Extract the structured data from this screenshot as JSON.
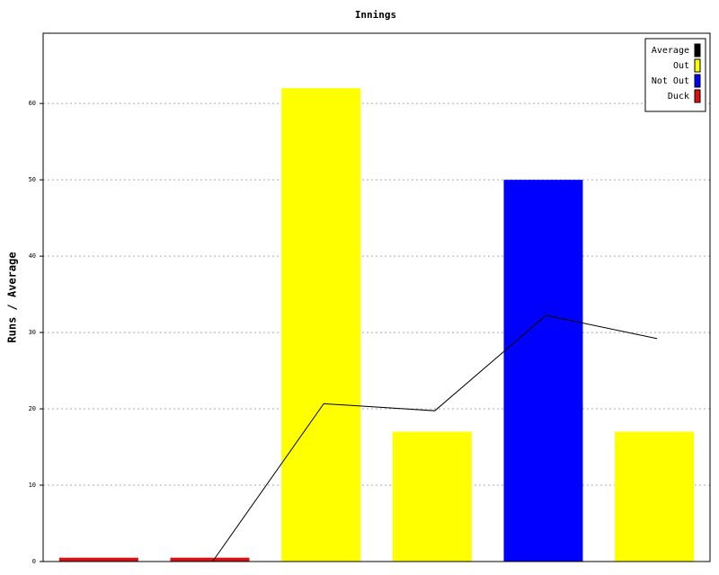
{
  "chart_data": {
    "type": "bar",
    "title": "Innings",
    "y_label": "Runs / Average",
    "ylim": [
      0,
      69.2
    ],
    "yticks": [
      0,
      10,
      20,
      30,
      40,
      50,
      60
    ],
    "grid": true,
    "legend": "top-right",
    "series": [
      {
        "name": "Average",
        "color": "#000000",
        "type": "line",
        "values": [
          null,
          0,
          20.67,
          19.75,
          32.25,
          29.2
        ]
      },
      {
        "name": "Out",
        "color": "#ffff00",
        "type": "bar",
        "values": [
          null,
          null,
          62,
          17,
          null,
          17
        ]
      },
      {
        "name": "Not Out",
        "color": "#0000ff",
        "type": "bar",
        "values": [
          null,
          null,
          null,
          null,
          50,
          null
        ]
      },
      {
        "name": "Duck",
        "color": "#dd1111",
        "type": "bar",
        "values": [
          0.5,
          0.5,
          null,
          null,
          null,
          null
        ]
      }
    ]
  }
}
